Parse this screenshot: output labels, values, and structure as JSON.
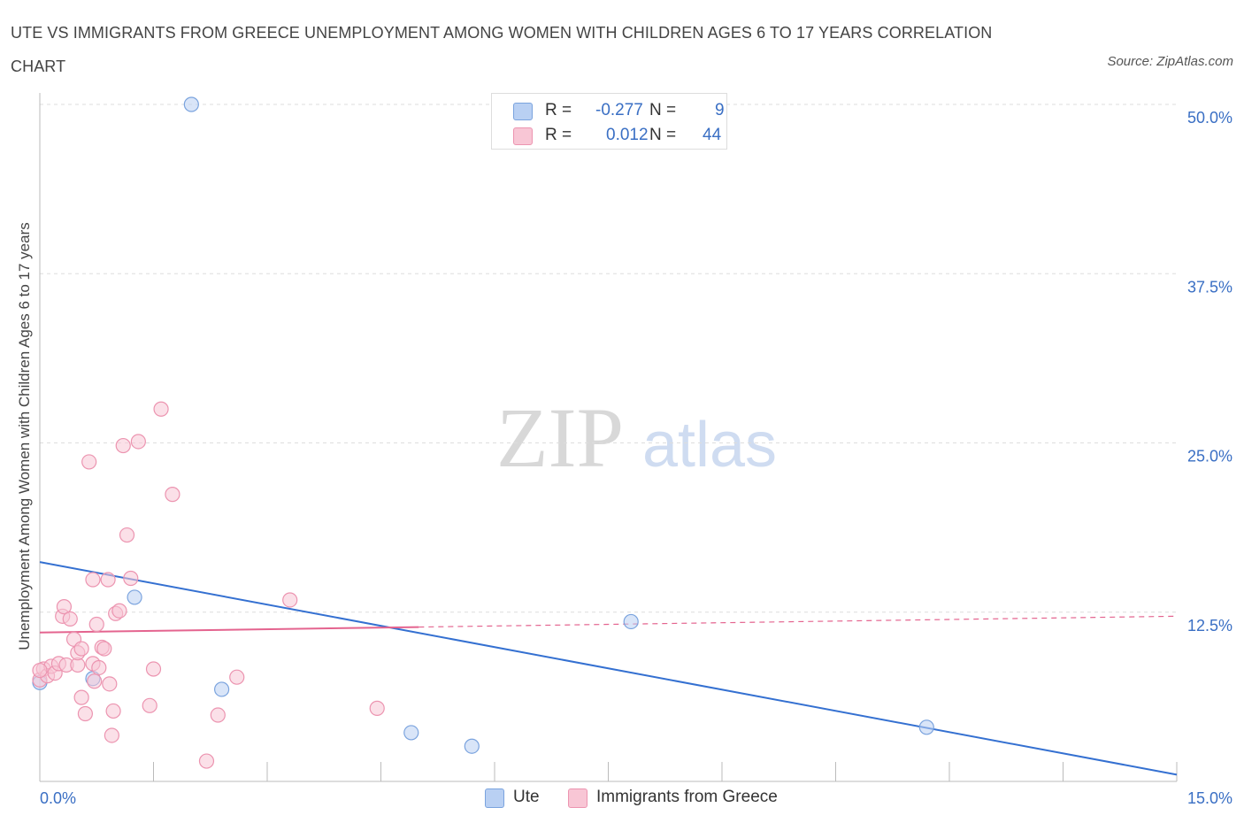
{
  "header": {
    "title": "UTE VS IMMIGRANTS FROM GREECE UNEMPLOYMENT AMONG WOMEN WITH CHILDREN AGES 6 TO 17 YEARS CORRELATION CHART",
    "source": "Source: ZipAtlas.com"
  },
  "watermark": {
    "zip": "ZIP",
    "atlas": "atlas"
  },
  "legend": {
    "r_label": "R =",
    "n_label": "N =",
    "ute": {
      "r": "-0.277",
      "n": "9"
    },
    "greece": {
      "r": "0.012",
      "n": "44"
    }
  },
  "bottom_legend": {
    "ute": "Ute",
    "greece": "Immigrants from Greece"
  },
  "colors": {
    "ute_fill": "#b9d0f3",
    "ute_stroke": "#7aa3de",
    "ute_line": "#3470d1",
    "greece_fill": "#f8c6d5",
    "greece_stroke": "#ec94b0",
    "greece_line": "#e4648f",
    "tick_label": "#3a6fc4",
    "grid": "#dddddd"
  },
  "chart_data": {
    "type": "scatter",
    "ylabel": "Unemployment Among Women with Children Ages 6 to 17 years",
    "xlim": [
      0,
      15
    ],
    "ylim": [
      0,
      50
    ],
    "x_tick_labels": [
      {
        "value": 0,
        "label": "0.0%"
      },
      {
        "value": 15,
        "label": "15.0%"
      }
    ],
    "y_tick_labels": [
      {
        "value": 12.5,
        "label": "12.5%"
      },
      {
        "value": 25,
        "label": "25.0%"
      },
      {
        "value": 37.5,
        "label": "37.5%"
      },
      {
        "value": 50,
        "label": "50.0%"
      }
    ],
    "grid": true,
    "series": [
      {
        "name": "Ute",
        "points": [
          [
            0.0,
            7.3
          ],
          [
            0.7,
            7.6
          ],
          [
            1.25,
            13.6
          ],
          [
            2.0,
            50.0
          ],
          [
            2.4,
            6.8
          ],
          [
            4.9,
            3.6
          ],
          [
            5.7,
            2.6
          ],
          [
            7.8,
            11.8
          ],
          [
            11.7,
            4.0
          ]
        ],
        "trend": {
          "x": [
            0,
            15
          ],
          "y": [
            16.2,
            0.5
          ]
        }
      },
      {
        "name": "Immigrants from Greece",
        "points": [
          [
            0.0,
            7.5
          ],
          [
            0.05,
            8.3
          ],
          [
            0.1,
            7.8
          ],
          [
            0.15,
            8.5
          ],
          [
            0.2,
            8.0
          ],
          [
            0.25,
            8.7
          ],
          [
            0.3,
            12.2
          ],
          [
            0.32,
            12.9
          ],
          [
            0.35,
            8.6
          ],
          [
            0.4,
            12.0
          ],
          [
            0.45,
            10.5
          ],
          [
            0.5,
            8.6
          ],
          [
            0.5,
            9.5
          ],
          [
            0.55,
            9.8
          ],
          [
            0.55,
            6.2
          ],
          [
            0.6,
            5.0
          ],
          [
            0.65,
            23.6
          ],
          [
            0.7,
            14.9
          ],
          [
            0.7,
            8.7
          ],
          [
            0.72,
            7.4
          ],
          [
            0.75,
            11.6
          ],
          [
            0.78,
            8.4
          ],
          [
            0.82,
            9.9
          ],
          [
            0.85,
            9.8
          ],
          [
            0.9,
            14.9
          ],
          [
            0.92,
            7.2
          ],
          [
            0.95,
            3.4
          ],
          [
            0.97,
            5.2
          ],
          [
            1.0,
            12.4
          ],
          [
            1.05,
            12.6
          ],
          [
            1.1,
            24.8
          ],
          [
            1.15,
            18.2
          ],
          [
            1.2,
            15.0
          ],
          [
            1.3,
            25.1
          ],
          [
            1.45,
            5.6
          ],
          [
            1.5,
            8.3
          ],
          [
            1.6,
            27.5
          ],
          [
            1.75,
            21.2
          ],
          [
            2.2,
            1.5
          ],
          [
            2.35,
            4.9
          ],
          [
            2.6,
            7.7
          ],
          [
            3.3,
            13.4
          ],
          [
            4.45,
            5.4
          ],
          [
            0.0,
            8.2
          ]
        ],
        "trend": {
          "x": [
            0,
            15
          ],
          "y": [
            11.0,
            12.2
          ],
          "solid_to_x": 5.0
        }
      }
    ]
  }
}
